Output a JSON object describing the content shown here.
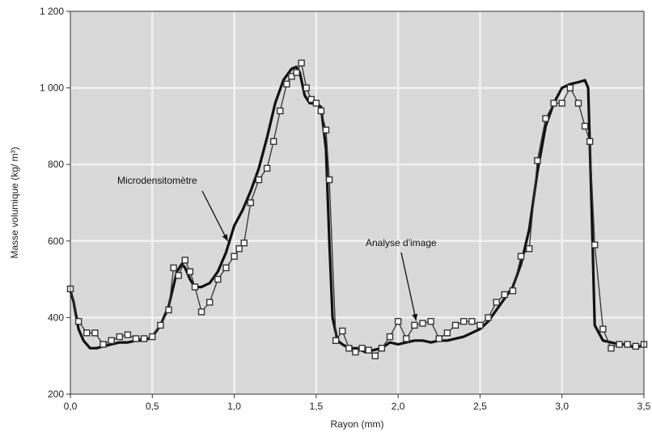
{
  "chart_data": {
    "type": "line",
    "title": "",
    "xlabel": "Rayon (mm)",
    "ylabel": "Masse volumique (kg/ m³)",
    "xlim": [
      0,
      3.5
    ],
    "ylim": [
      200,
      1200
    ],
    "x_ticks": [
      "0,0",
      "0,5",
      "1,0",
      "1,5",
      "2,0",
      "2,5",
      "3,0",
      "3,5"
    ],
    "x_tick_values": [
      0,
      0.5,
      1.0,
      1.5,
      2.0,
      2.5,
      3.0,
      3.5
    ],
    "y_ticks": [
      "200",
      "400",
      "600",
      "800",
      "1 000",
      "1 200"
    ],
    "y_tick_values": [
      200,
      400,
      600,
      800,
      1000,
      1200
    ],
    "grid": true,
    "background_color": "#d9d9d9",
    "grid_color": "#f2f2f2",
    "annotations": [
      {
        "text": "Microdensitomètre",
        "target_series": 0
      },
      {
        "text": "Analyse d'image",
        "target_series": 1
      }
    ],
    "series": [
      {
        "name": "Microdensitomètre",
        "style": "line",
        "color": "#111111",
        "x": [
          0.0,
          0.02,
          0.05,
          0.08,
          0.12,
          0.16,
          0.2,
          0.25,
          0.3,
          0.35,
          0.4,
          0.45,
          0.5,
          0.55,
          0.6,
          0.65,
          0.68,
          0.7,
          0.73,
          0.76,
          0.8,
          0.85,
          0.9,
          0.95,
          1.0,
          1.05,
          1.1,
          1.15,
          1.2,
          1.25,
          1.3,
          1.35,
          1.38,
          1.4,
          1.43,
          1.46,
          1.5,
          1.53,
          1.56,
          1.58,
          1.6,
          1.63,
          1.66,
          1.7,
          1.75,
          1.8,
          1.85,
          1.9,
          1.95,
          2.0,
          2.05,
          2.1,
          2.15,
          2.2,
          2.25,
          2.3,
          2.35,
          2.4,
          2.45,
          2.5,
          2.55,
          2.6,
          2.65,
          2.7,
          2.75,
          2.8,
          2.85,
          2.9,
          2.95,
          3.0,
          3.05,
          3.1,
          3.14,
          3.16,
          3.18,
          3.2,
          3.25,
          3.3,
          3.35,
          3.4,
          3.45,
          3.5
        ],
        "y": [
          470,
          440,
          370,
          340,
          320,
          320,
          325,
          330,
          335,
          335,
          340,
          340,
          350,
          380,
          430,
          520,
          540,
          530,
          500,
          480,
          480,
          490,
          520,
          570,
          640,
          680,
          730,
          790,
          870,
          960,
          1020,
          1050,
          1055,
          1040,
          980,
          960,
          960,
          950,
          840,
          600,
          400,
          340,
          330,
          320,
          320,
          310,
          315,
          320,
          335,
          330,
          335,
          340,
          340,
          335,
          340,
          340,
          345,
          350,
          360,
          370,
          390,
          420,
          450,
          480,
          540,
          630,
          780,
          900,
          960,
          1000,
          1010,
          1015,
          1020,
          1000,
          700,
          380,
          340,
          335,
          330,
          330,
          320,
          330
        ]
      },
      {
        "name": "Analyse d'image",
        "style": "line-markers",
        "color": "#333333",
        "marker": "square",
        "x": [
          0.0,
          0.05,
          0.1,
          0.15,
          0.2,
          0.25,
          0.3,
          0.35,
          0.4,
          0.45,
          0.5,
          0.55,
          0.6,
          0.63,
          0.66,
          0.7,
          0.73,
          0.76,
          0.8,
          0.85,
          0.9,
          0.95,
          1.0,
          1.03,
          1.06,
          1.1,
          1.15,
          1.2,
          1.24,
          1.28,
          1.32,
          1.35,
          1.38,
          1.41,
          1.44,
          1.47,
          1.5,
          1.53,
          1.56,
          1.58,
          1.62,
          1.66,
          1.7,
          1.74,
          1.78,
          1.82,
          1.86,
          1.9,
          1.95,
          2.0,
          2.05,
          2.1,
          2.15,
          2.2,
          2.25,
          2.3,
          2.35,
          2.4,
          2.45,
          2.5,
          2.55,
          2.6,
          2.65,
          2.7,
          2.75,
          2.8,
          2.85,
          2.9,
          2.95,
          3.0,
          3.05,
          3.1,
          3.14,
          3.17,
          3.2,
          3.25,
          3.3,
          3.35,
          3.4,
          3.45,
          3.5
        ],
        "y": [
          475,
          390,
          360,
          360,
          330,
          340,
          350,
          355,
          345,
          345,
          350,
          380,
          420,
          530,
          510,
          550,
          520,
          480,
          415,
          440,
          500,
          530,
          560,
          580,
          595,
          700,
          760,
          790,
          860,
          940,
          1010,
          1030,
          1040,
          1065,
          1000,
          970,
          960,
          940,
          890,
          760,
          340,
          365,
          320,
          310,
          320,
          315,
          300,
          320,
          350,
          390,
          345,
          380,
          385,
          390,
          345,
          360,
          380,
          390,
          390,
          380,
          400,
          440,
          460,
          470,
          560,
          580,
          810,
          920,
          960,
          960,
          1000,
          960,
          900,
          860,
          590,
          370,
          320,
          330,
          330,
          325,
          330
        ]
      }
    ]
  }
}
